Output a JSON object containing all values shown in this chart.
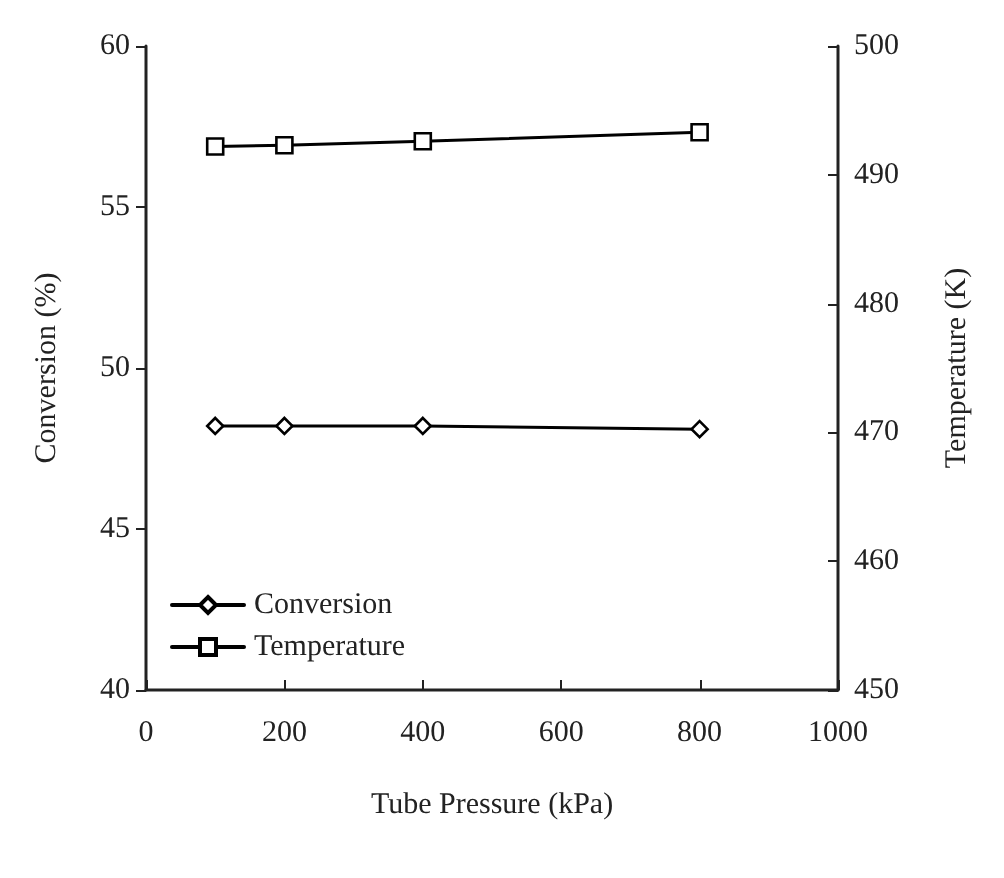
{
  "chart_data": {
    "type": "line",
    "xlabel": "Tube Pressure (kPa)",
    "ylabel": "Conversion (%)",
    "y2label": "Temperature (K)",
    "x": [
      100,
      200,
      400,
      800
    ],
    "series": [
      {
        "name": "Conversion",
        "color": "#000000",
        "marker": "diamond",
        "values": [
          48.2,
          48.2,
          48.2,
          48.1
        ]
      },
      {
        "name": "Temperature",
        "color": "#000000",
        "marker": "square",
        "axis": "y2",
        "values": [
          492.2,
          492.3,
          492.6,
          493.3
        ]
      }
    ],
    "xlim": [
      0,
      1000
    ],
    "xticks": [
      0,
      200,
      400,
      600,
      800,
      1000
    ],
    "ylim": [
      40,
      60
    ],
    "yticks": [
      40,
      45,
      50,
      55,
      60
    ],
    "y2lim": [
      450,
      500
    ],
    "y2ticks": [
      450,
      460,
      470,
      480,
      490,
      500
    ],
    "grid": false,
    "legend": "bottom left",
    "line_style": "solid"
  }
}
